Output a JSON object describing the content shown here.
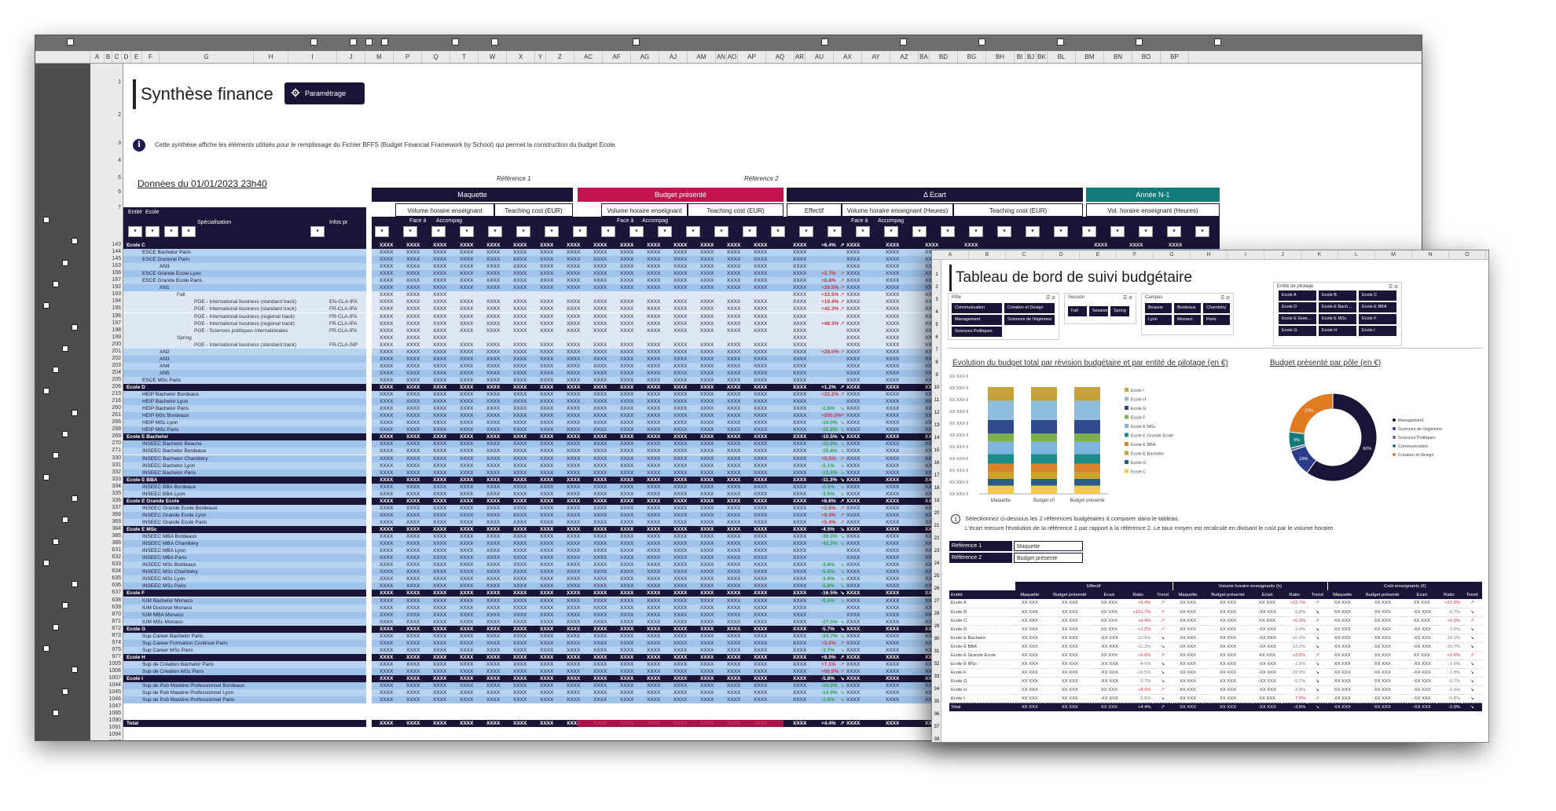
{
  "sheet": {
    "title": "Synthèse finance",
    "param_button": "Paramétrage",
    "info_text": "Cette synthèse affiche les éléments utilisés pour le remplissage du Fichier BFFS (Budget Financial Framework by School) qui permet la construction du budget Ecole.",
    "data_date": "Données du 01/01/2023 23h40",
    "reference1": "Référence 1",
    "reference2": "Référence 2",
    "columns": [
      "A",
      "B",
      "C",
      "D",
      "E",
      "F",
      "G",
      "H",
      "I",
      "J",
      "M",
      "P",
      "Q",
      "T",
      "W",
      "X",
      "Y",
      "Z",
      "AC",
      "AF",
      "AG",
      "AJ",
      "AM",
      "AN",
      "AO",
      "AP",
      "AQ",
      "AR",
      "AU",
      "AX",
      "AY",
      "AZ",
      "BA",
      "BD",
      "BG",
      "BH",
      "BI",
      "BJ",
      "BK",
      "BL",
      "BM",
      "BN",
      "BO",
      "BP"
    ],
    "bands": {
      "maquette": "Maquette",
      "budget": "Budget présenté",
      "ecart": "Δ Ecart",
      "annee": "Année N-1"
    },
    "subheads": {
      "volume": "Volume horaire enseignant (Heures)",
      "teaching": "Teaching cost (EUR)",
      "effectif": "Effectif",
      "vol_n1": "Vol. horaire enseignant (Heures)"
    },
    "filters": {
      "entite": "Entité",
      "ecole": "Ecole",
      "specialisation": "Spécialisation",
      "infos": "Infos pr",
      "face": "Face à",
      "accomp": "Accompag"
    },
    "row_numbers": [
      "1",
      "2",
      "3",
      "4",
      "5",
      "6",
      "7",
      "143",
      "144",
      "145",
      "163",
      "166",
      "167",
      "192",
      "193",
      "194",
      "195",
      "196",
      "197",
      "198",
      "199",
      "200",
      "201",
      "202",
      "203",
      "204",
      "205",
      "206",
      "215",
      "216",
      "260",
      "261",
      "266",
      "268",
      "269",
      "270",
      "271",
      "330",
      "331",
      "332",
      "333",
      "334",
      "335",
      "336",
      "337",
      "368",
      "369",
      "384",
      "385",
      "386",
      "631",
      "632",
      "633",
      "634",
      "635",
      "636",
      "637",
      "638",
      "639",
      "870",
      "871",
      "872",
      "873",
      "974",
      "975",
      "977",
      "1005",
      "1006",
      "1007",
      "1044",
      "1045",
      "1046",
      "1047",
      "1085",
      "1090",
      "1091",
      "1094",
      "1113",
      "1114",
      "1115",
      "1116",
      "1290"
    ],
    "rows": [
      {
        "kind": "grp",
        "label": "Ecole C",
        "val": "+6.4%"
      },
      {
        "kind": "sub",
        "label": "ESCE Bachelor Paris"
      },
      {
        "kind": "sub",
        "label": "ESCE Doctorat Paris"
      },
      {
        "kind": "sub",
        "label": "AN3"
      },
      {
        "kind": "sub",
        "label": "ESCE Grande Ecole Lyon",
        "val": "+2.7%"
      },
      {
        "kind": "sub",
        "label": "ESCE Grande Ecole Paris",
        "val": "+8.8%"
      },
      {
        "kind": "sub",
        "label": "AN1",
        "val": "+29.5%"
      },
      {
        "kind": "pale",
        "label": "Fall",
        "val": "+33.5%"
      },
      {
        "kind": "pale",
        "label": "PGE - International business (standard track)",
        "code": "EN-CLA-IFA",
        "val": "+19.4%"
      },
      {
        "kind": "pale",
        "label": "PGE - International business (standard track)",
        "code": "FR-CLA-IFA",
        "val": "+42.3%"
      },
      {
        "kind": "pale",
        "label": "PGE - International business (regional track)",
        "code": "FR-CLA-IFA"
      },
      {
        "kind": "pale",
        "label": "PGE - International business (regional track)",
        "code": "FR-CLA-IFA",
        "val": "+48.3%"
      },
      {
        "kind": "pale",
        "label": "PGE - Sciences politiques internationales",
        "code": "FR-CLA-IFA"
      },
      {
        "kind": "pale",
        "label": "Spring"
      },
      {
        "kind": "pale",
        "label": "PGE - International business (standard track)",
        "code": "FR-CLA-SIP"
      },
      {
        "kind": "sub",
        "label": "AN2",
        "val": "+29.0%"
      },
      {
        "kind": "sub",
        "label": "AN3"
      },
      {
        "kind": "sub",
        "label": "AN4"
      },
      {
        "kind": "sub",
        "label": "AN5"
      },
      {
        "kind": "sub",
        "label": "ESCE MSc Paris"
      },
      {
        "kind": "grp",
        "label": "Ecole D",
        "val": "+1.2%"
      },
      {
        "kind": "sub",
        "label": "HEIP Bachelor Bordeaux",
        "val": "+33.2%"
      },
      {
        "kind": "sub",
        "label": "HEIP Bachelor Lyon"
      },
      {
        "kind": "sub",
        "label": "HEIP Bachelor Paris",
        "val": "-1.6%"
      },
      {
        "kind": "sub",
        "label": "HEIP MSc Bordeaux",
        "val": "+200.0%"
      },
      {
        "kind": "sub",
        "label": "HEIP MSc Lyon",
        "val": "-10.0%"
      },
      {
        "kind": "sub",
        "label": "HEIP MSc Paris",
        "val": "-15.8%"
      },
      {
        "kind": "grp",
        "label": "Ecole E Bachelor",
        "val": "-10.5%"
      },
      {
        "kind": "sub",
        "label": "INSEEC Bachelor Beaune",
        "val": "-32.8%"
      },
      {
        "kind": "sub",
        "label": "INSEEC Bachelor Bordeaux",
        "val": "-15.8%"
      },
      {
        "kind": "sub",
        "label": "INSEEC Bachelor Chambéry",
        "val": "+5.5%"
      },
      {
        "kind": "sub",
        "label": "INSEEC Bachelor Lyon",
        "val": "-5.1%"
      },
      {
        "kind": "sub",
        "label": "INSEEC Bachelor Paris",
        "val": "-15.4%"
      },
      {
        "kind": "grp",
        "label": "Ecole E BBA",
        "val": "-11.3%"
      },
      {
        "kind": "sub",
        "label": "INSEEC BBA Bordeaux",
        "val": "-0.5%"
      },
      {
        "kind": "sub",
        "label": "INSEEC BBA Lyon",
        "val": "-3.5%"
      },
      {
        "kind": "grp",
        "label": "Ecole E Grande Ecole",
        "val": "+6.6%"
      },
      {
        "kind": "sub",
        "label": "INSEEC Grande Ecole Bordeaux",
        "val": "+2.6%"
      },
      {
        "kind": "sub",
        "label": "INSEEC Grande Ecole Lyon",
        "val": "+9.4%"
      },
      {
        "kind": "sub",
        "label": "INSEEC Grande Ecole Paris",
        "val": "+5.4%"
      },
      {
        "kind": "grp",
        "label": "Ecole E MSc",
        "val": "-4.5%"
      },
      {
        "kind": "sub",
        "label": "INSEEC MBA Bordeaux",
        "val": "-39.3%"
      },
      {
        "kind": "sub",
        "label": "INSEEC MBA Chambéry",
        "val": "-42.3%"
      },
      {
        "kind": "sub",
        "label": "INSEEC MBA Lyon"
      },
      {
        "kind": "sub",
        "label": "INSEEC MBA Paris"
      },
      {
        "kind": "sub",
        "label": "INSEEC MSc Bordeaux",
        "val": "-3.8%"
      },
      {
        "kind": "sub",
        "label": "INSEEC MSc Chambéry",
        "val": "-5.6%"
      },
      {
        "kind": "sub",
        "label": "INSEEC MSc Lyon",
        "val": "-3.8%"
      },
      {
        "kind": "sub",
        "label": "INSEEC MSc Paris",
        "val": "-5.8%"
      },
      {
        "kind": "grp",
        "label": "Ecole F",
        "val": "-16.5%"
      },
      {
        "kind": "sub",
        "label": "IUM Bachelor Monaco",
        "val": "-5.8%"
      },
      {
        "kind": "sub",
        "label": "IUM Doctorat Monaco"
      },
      {
        "kind": "sub",
        "label": "IUM MBA Monaco"
      },
      {
        "kind": "sub",
        "label": "IUM MSc Monaco",
        "val": "-27.5%"
      },
      {
        "kind": "grp",
        "label": "Ecole G",
        "val": "-5.7%"
      },
      {
        "kind": "sub",
        "label": "Sup Career Bachelor Paris",
        "val": "-24.7%"
      },
      {
        "kind": "sub",
        "label": "Sup Career Formation Continue Paris",
        "val": "+3.0%"
      },
      {
        "kind": "sub",
        "label": "Sup Career MSc Paris",
        "val": "-3.7%"
      },
      {
        "kind": "grp",
        "label": "Ecole H",
        "val": "+8.0%"
      },
      {
        "kind": "sub",
        "label": "Sup de Création Bachelor Paris",
        "val": "+7.1%"
      },
      {
        "kind": "sub",
        "label": "Sup de Création MSc Paris",
        "val": "+60.0%"
      },
      {
        "kind": "grp",
        "label": "Ecole I",
        "val": "-5.8%"
      },
      {
        "kind": "sub",
        "label": "Sup de Pub Mastère Professionnel Bordeaux",
        "val": "-24.0%"
      },
      {
        "kind": "sub",
        "label": "Sup de Pub Mastère Professionnel Lyon",
        "val": "-14.9%"
      },
      {
        "kind": "sub",
        "label": "Sup de Pub Mastère Professionnel Paris",
        "val": "-2.6%"
      },
      {
        "kind": "grp",
        "label": "Total",
        "val": "+4.4%"
      }
    ],
    "cell_value": "XXXX",
    "positive_color": "#d2303c",
    "negative_color": "#2f9e4a",
    "colors": {
      "navy": "#1c1436",
      "magenta": "#c1134f",
      "teal": "#137a7a",
      "lightblue": "#9fc3ea"
    }
  },
  "dashboard": {
    "title": "Tableau de bord de suivi budgétaire",
    "slicers": {
      "pole": {
        "title": "Pôle",
        "items": [
          "Communication",
          "Création et Design",
          "Management",
          "Sciences de l'ingénieur",
          "Sciences Politiques"
        ]
      },
      "session": {
        "title": "Session",
        "items": [
          "Fall",
          "Sessions",
          "Spring"
        ]
      },
      "campus": {
        "title": "Campus",
        "items": [
          "Beaune",
          "Bordeaux",
          "Chambéry",
          "Lyon",
          "Monaco",
          "Paris"
        ]
      },
      "entite": {
        "title": "Entité de pilotage",
        "items": [
          "Ecole A",
          "Ecole B",
          "Ecole C",
          "Ecole D",
          "Ecole E Bach…",
          "Ecole E BBA",
          "Ecole E Gran…",
          "Ecole E MSc",
          "Ecole F",
          "Ecole G",
          "Ecole H",
          "Ecole I"
        ]
      }
    },
    "bar_chart_title": "Évolution du budget total par révision budgétaire et par entité de pilotage (en €)",
    "donut_title": "Budget présenté par pôle (en €)",
    "note_line1": "Sélectionnez ci-dessous les 2 références budgétaires à comparer dans le tableau.",
    "note_line2": "L'écart mesure l'évolution de la référence 1 par rapport à la référence 2. Le taux moyen est recalculé en divisant le coût par le volume horaire.",
    "ref1_label": "Référence 1",
    "ref1_value": "Maquette",
    "ref2_label": "Référence 2",
    "ref2_value": "Budget présenté",
    "table": {
      "groups": [
        "Effectif",
        "Volume horaire enseignants (h)",
        "Coût enseignants (€)"
      ],
      "sub_headers": [
        "Maquette",
        "Budget présenté",
        "Ecart",
        "Ratio",
        "Trend"
      ],
      "first_header": "Entité",
      "placeholder": "XX XXX",
      "neg_placeholder": "-XX XXX",
      "rows": [
        {
          "name": "Ecole A",
          "r": [
            "+6.4%",
            "+22.7%",
            "+22.8%"
          ]
        },
        {
          "name": "Ecole B",
          "r": [
            "+101.7%",
            "-5.8%",
            "-6.7%"
          ]
        },
        {
          "name": "Ecole C",
          "r": [
            "+6.4%",
            "+5.0%",
            "+6.3%"
          ]
        },
        {
          "name": "Ecole D",
          "r": [
            "+1.2%",
            "-3.0%",
            "-3.9%"
          ]
        },
        {
          "name": "Ecole E Bachelor",
          "r": [
            "-10.5%",
            "-16.0%",
            "-16.1%"
          ]
        },
        {
          "name": "Ecole E BBA",
          "r": [
            "-11.3%",
            "-12.2%",
            "-10.7%"
          ]
        },
        {
          "name": "Ecole E Grande Ecole",
          "r": [
            "+6.6%",
            "+3.6%",
            "+3.6%"
          ]
        },
        {
          "name": "Ecole E MSc",
          "r": [
            "-4.5%",
            "-1.6%",
            "-1.6%"
          ]
        },
        {
          "name": "Ecole F",
          "r": [
            "-16.5%",
            "-22.0%",
            "-1.8%"
          ]
        },
        {
          "name": "Ecole G",
          "r": [
            "-5.7%",
            "-5.7%",
            "-5.7%"
          ]
        },
        {
          "name": "Ecole H",
          "r": [
            "+8.0%",
            "-2.8%",
            "-2.4%"
          ]
        },
        {
          "name": "Ecole I",
          "r": [
            "-5.8%",
            "7.0%",
            "-5.8%"
          ]
        },
        {
          "name": "Total",
          "r": [
            "+4.4%",
            "-3.6%",
            "-2.9%"
          ]
        }
      ]
    }
  },
  "chart_data": [
    {
      "type": "bar",
      "title": "Évolution du budget total par révision budgétaire et par entité de pilotage (en €)",
      "categories": [
        "Maquette",
        "Budget v0",
        "Budget présenté"
      ],
      "yticks": [
        "XX XXX €",
        "XX XXX €",
        "XX XXX €",
        "XX XXX €",
        "XX XXX €",
        "XX XXX €",
        "XX XXX €",
        "XX XXX €",
        "XX XXX €",
        "XX XXX €",
        "XX XXX €"
      ],
      "stacked": true,
      "series": [
        {
          "name": "Ecole C",
          "color": "#f2c94c",
          "values": [
            0.06,
            0.06,
            0.06
          ]
        },
        {
          "name": "Ecole D",
          "color": "#2b5c8a",
          "values": [
            0.05,
            0.05,
            0.05
          ]
        },
        {
          "name": "Ecole E Bachelor",
          "color": "#c9a227",
          "values": [
            0.05,
            0.05,
            0.05
          ]
        },
        {
          "name": "Ecole E BBA",
          "color": "#d9822b",
          "values": [
            0.06,
            0.06,
            0.06
          ]
        },
        {
          "name": "Ecole E Grande Ecole",
          "color": "#1e8a8a",
          "values": [
            0.07,
            0.07,
            0.07
          ]
        },
        {
          "name": "Ecole E MSc",
          "color": "#7fb3e0",
          "values": [
            0.09,
            0.09,
            0.09
          ]
        },
        {
          "name": "Ecole F",
          "color": "#7fb04a",
          "values": [
            0.06,
            0.06,
            0.06
          ]
        },
        {
          "name": "Ecole G",
          "color": "#2f4a8a",
          "values": [
            0.1,
            0.1,
            0.1
          ]
        },
        {
          "name": "Ecole H",
          "color": "#8fbcdc",
          "values": [
            0.14,
            0.14,
            0.14
          ]
        },
        {
          "name": "Ecole I",
          "color": "#c7a13a",
          "values": [
            0.1,
            0.1,
            0.1
          ]
        }
      ],
      "legend_order": [
        "Ecole I",
        "Ecole H",
        "Ecole G",
        "Ecole F",
        "Ecole E MSc",
        "Ecole E Grande Ecole",
        "Ecole E BBA",
        "Ecole E Bachelor",
        "Ecole D",
        "Ecole C"
      ]
    },
    {
      "type": "pie",
      "title": "Budget présenté par pôle (en €)",
      "slices": [
        {
          "label": "Management",
          "value": 60,
          "color": "#1c1436"
        },
        {
          "label": "Sciences de l'ingénieur",
          "value": 10,
          "color": "#2b3d8a"
        },
        {
          "label": "Sciences Politiques",
          "value": 1,
          "color": "#5a6b8a"
        },
        {
          "label": "Communication",
          "value": 6,
          "color": "#137a7a"
        },
        {
          "label": "Création et Design",
          "value": 23,
          "color": "#e07b22"
        }
      ]
    }
  ]
}
